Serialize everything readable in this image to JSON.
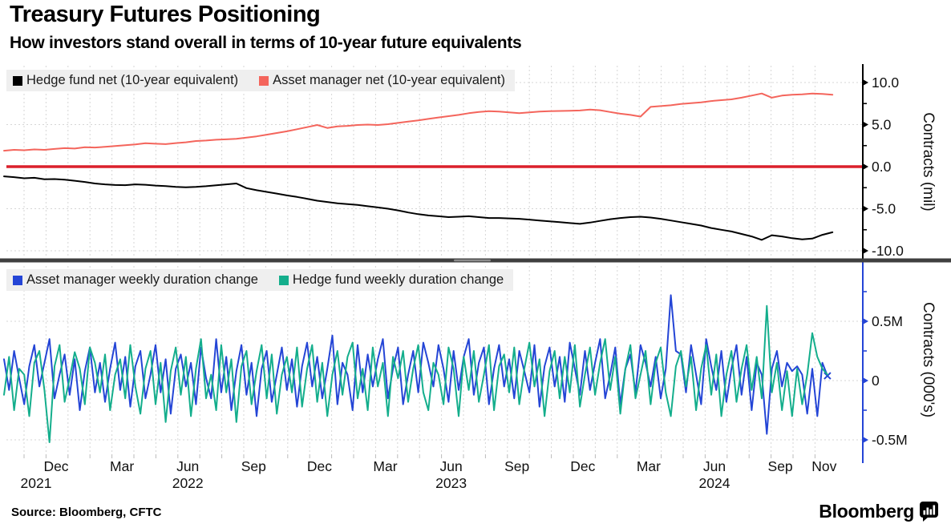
{
  "header": {
    "title": "Treasury Futures Positioning",
    "subtitle": "How investors stand overall in terms of 10-year future equivalents"
  },
  "footer": {
    "source": "Source: Bloomberg, CFTC",
    "brand": "Bloomberg",
    "brand_icon": "bloomberg-bar-chart-icon"
  },
  "colors": {
    "hedge_fund_net": "#000000",
    "asset_manager_net": "#F4655C",
    "zero_line": "#DB202C",
    "asset_manager_duration": "#2445D6",
    "hedge_fund_duration": "#14AE8C",
    "grid": "#d6d6d6",
    "separator": "#3f3f3f",
    "top_axis": "#000000",
    "bottom_axis": "#2445D6"
  },
  "chart_data": {
    "type": "line",
    "layout": "two-stacked-panels, right-side y axes, shared x axis",
    "x_axis": {
      "tick_labels": [
        "Dec",
        "Mar",
        "Jun",
        "Sep",
        "Dec",
        "Mar",
        "Jun",
        "Sep",
        "Dec",
        "Mar",
        "Jun",
        "Sep",
        "Nov"
      ],
      "year_labels": [
        {
          "tick_index": 0,
          "label": "2021"
        },
        {
          "tick_index": 2,
          "label": "2022"
        },
        {
          "tick_index": 6,
          "label": "2023"
        },
        {
          "tick_index": 10,
          "label": "2024"
        }
      ],
      "range": "Oct 2021 - Nov 2024",
      "grid": "monthly dashed vertical lines"
    },
    "panels": [
      {
        "name": "net-positioning",
        "ylabel": "Contracts (mil)",
        "ylim": [
          -11,
          11.5
        ],
        "yticks": [
          {
            "v": 10,
            "label": "10.0"
          },
          {
            "v": 5,
            "label": "5.0"
          },
          {
            "v": 0,
            "label": "0.0"
          },
          {
            "v": -5,
            "label": "-5.0"
          },
          {
            "v": -10,
            "label": "-10.0"
          }
        ],
        "yticks_minor": [
          7.5,
          2.5,
          -2.5,
          -7.5
        ],
        "zero_line": true,
        "points_step_weeks": 2,
        "legend": [
          {
            "label": "Hedge fund net (10-year equivalent)",
            "color": "#000000"
          },
          {
            "label": "Asset manager net (10-year equivalent)",
            "color": "#F4655C"
          }
        ],
        "series": [
          {
            "name": "Hedge fund net (10-year equivalent)",
            "color": "#000000",
            "values": [
              -1.15,
              -1.25,
              -1.38,
              -1.32,
              -1.5,
              -1.48,
              -1.55,
              -1.68,
              -1.82,
              -2.0,
              -2.1,
              -2.18,
              -2.2,
              -2.1,
              -2.15,
              -2.25,
              -2.3,
              -2.4,
              -2.45,
              -2.4,
              -2.32,
              -2.22,
              -2.1,
              -2.0,
              -2.55,
              -2.8,
              -3.0,
              -3.2,
              -3.42,
              -3.6,
              -3.82,
              -4.05,
              -4.2,
              -4.35,
              -4.45,
              -4.55,
              -4.7,
              -4.85,
              -5.0,
              -5.2,
              -5.45,
              -5.65,
              -5.8,
              -5.9,
              -6.0,
              -5.95,
              -5.9,
              -6.0,
              -6.1,
              -6.1,
              -6.15,
              -6.2,
              -6.3,
              -6.4,
              -6.5,
              -6.6,
              -6.7,
              -6.8,
              -6.65,
              -6.45,
              -6.25,
              -6.1,
              -6.0,
              -5.95,
              -6.05,
              -6.2,
              -6.4,
              -6.6,
              -6.8,
              -7.0,
              -7.3,
              -7.5,
              -7.7,
              -8.0,
              -8.3,
              -8.7,
              -8.15,
              -8.3,
              -8.5,
              -8.65,
              -8.55,
              -8.1,
              -7.8
            ]
          },
          {
            "name": "Asset manager net (10-year equivalent)",
            "color": "#F4655C",
            "values": [
              1.9,
              2.0,
              1.95,
              2.05,
              2.0,
              2.1,
              2.2,
              2.15,
              2.3,
              2.28,
              2.35,
              2.45,
              2.55,
              2.65,
              2.78,
              2.72,
              2.68,
              2.8,
              2.9,
              3.05,
              3.1,
              3.2,
              3.25,
              3.3,
              3.45,
              3.6,
              3.8,
              4.0,
              4.2,
              4.45,
              4.7,
              4.95,
              4.6,
              4.78,
              4.85,
              4.95,
              5.0,
              4.95,
              5.05,
              5.2,
              5.35,
              5.5,
              5.68,
              5.85,
              6.0,
              6.15,
              6.35,
              6.5,
              6.6,
              6.55,
              6.45,
              6.35,
              6.45,
              6.55,
              6.6,
              6.62,
              6.65,
              6.68,
              6.78,
              6.7,
              6.5,
              6.3,
              6.15,
              5.95,
              7.1,
              7.2,
              7.3,
              7.45,
              7.55,
              7.65,
              7.8,
              7.9,
              8.0,
              8.2,
              8.45,
              8.7,
              8.2,
              8.45,
              8.55,
              8.6,
              8.7,
              8.65,
              8.55
            ]
          }
        ]
      },
      {
        "name": "weekly-duration-change",
        "ylabel": "Contracts (000's)",
        "ylim": [
          -0.8,
          0.9
        ],
        "yticks": [
          {
            "v": 0.5,
            "label": "0.5M"
          },
          {
            "v": 0,
            "label": "0"
          },
          {
            "v": -0.5,
            "label": "-0.5M"
          }
        ],
        "yticks_minor": [
          0.75,
          0.25,
          -0.25
        ],
        "zero_line": false,
        "points_step_weeks": 1,
        "end_marker": {
          "series": 0,
          "shape": "x"
        },
        "legend": [
          {
            "label": "Asset manager weekly duration change",
            "color": "#2445D6"
          },
          {
            "label": "Hedge fund weekly duration change",
            "color": "#14AE8C"
          }
        ],
        "series": [
          {
            "name": "Asset manager weekly duration change",
            "color": "#2445D6",
            "values": [
              0.18,
              -0.08,
              0.25,
              0.02,
              -0.2,
              0.12,
              0.3,
              -0.05,
              0.15,
              0.35,
              -0.15,
              0.05,
              0.22,
              -0.12,
              0.18,
              -0.25,
              0.08,
              0.28,
              -0.1,
              0.15,
              -0.18,
              0.1,
              0.32,
              -0.08,
              0.2,
              -0.22,
              0.12,
              0.25,
              -0.15,
              0.05,
              0.3,
              -0.1,
              0.18,
              -0.28,
              0.1,
              0.22,
              -0.05,
              0.15,
              -0.2,
              0.28,
              0.02,
              -0.15,
              0.35,
              -0.1,
              0.2,
              -0.25,
              0.08,
              0.3,
              -0.12,
              0.15,
              -0.3,
              0.1,
              0.25,
              -0.18,
              0.05,
              0.28,
              -0.08,
              0.18,
              -0.22,
              0.12,
              0.32,
              -0.05,
              0.2,
              -0.15,
              0.1,
              0.38,
              -0.2,
              0.15,
              0.05,
              -0.25,
              0.3,
              -0.1,
              0.22,
              -0.05,
              0.18,
              0.35,
              -0.15,
              0.1,
              0.28,
              -0.2,
              0.05,
              0.25,
              -0.1,
              0.32,
              0.15,
              -0.05,
              0.3,
              0.1,
              -0.18,
              0.25,
              -0.08,
              0.2,
              0.35,
              -0.12,
              0.15,
              0.28,
              -0.2,
              0.1,
              0.3,
              -0.05,
              0.18,
              -0.15,
              0.25,
              0.08,
              -0.1,
              0.3,
              -0.22,
              0.12,
              0.28,
              -0.05,
              0.2,
              -0.18,
              0.32,
              0.1,
              -0.12,
              0.25,
              -0.08,
              0.15,
              0.35,
              -0.15,
              0.05,
              0.28,
              -0.2,
              0.1,
              0.22,
              -0.1,
              0.3,
              0.15,
              -0.05,
              0.2,
              -0.15,
              0.1,
              0.72,
              0.25,
              0.22,
              -0.1,
              0.3,
              0.05,
              -0.2,
              0.35,
              0.12,
              -0.08,
              0.25,
              -0.18,
              0.1,
              0.3,
              -0.12,
              0.2,
              -0.25,
              0.15,
              0.05,
              -0.45,
              0.1,
              0.25,
              -0.05,
              0.15,
              0.08,
              0.12,
              0.05,
              -0.28,
              0.1,
              -0.3,
              0.15,
              0.04
            ]
          },
          {
            "name": "Hedge fund weekly duration change",
            "color": "#14AE8C",
            "values": [
              -0.12,
              0.2,
              -0.25,
              0.1,
              0.05,
              -0.3,
              0.15,
              0.25,
              -0.08,
              -0.52,
              0.12,
              0.3,
              -0.18,
              0.02,
              0.24,
              0.1,
              -0.2,
              0.28,
              0.15,
              -0.1,
              0.22,
              -0.25,
              0.05,
              0.18,
              -0.15,
              0.3,
              -0.05,
              -0.28,
              0.1,
              0.25,
              -0.2,
              0.15,
              -0.35,
              0.08,
              0.28,
              -0.12,
              0.2,
              -0.3,
              0.1,
              0.35,
              -0.15,
              0.05,
              -0.25,
              0.3,
              -0.1,
              0.18,
              -0.35,
              0.12,
              0.25,
              -0.2,
              0.08,
              0.3,
              -0.15,
              0.22,
              -0.28,
              0.05,
              0.2,
              -0.1,
              0.28,
              -0.22,
              0.1,
              0.3,
              -0.18,
              0.15,
              -0.3,
              0.05,
              0.25,
              -0.12,
              0.2,
              0.32,
              -0.15,
              0.1,
              -0.25,
              0.28,
              -0.05,
              0.15,
              -0.3,
              0.2,
              0.02,
              0.25,
              -0.18,
              0.1,
              0.3,
              -0.1,
              -0.25,
              0.15,
              0.05,
              -0.2,
              0.28,
              0.1,
              -0.3,
              0.2,
              -0.08,
              0.25,
              -0.18,
              0.05,
              0.3,
              -0.25,
              0.12,
              0.22,
              -0.1,
              0.28,
              -0.2,
              0.1,
              0.32,
              -0.05,
              0.18,
              -0.3,
              0.08,
              0.25,
              -0.15,
              0.2,
              -0.1,
              0.3,
              -0.22,
              0.05,
              0.28,
              -0.12,
              0.15,
              0.35,
              -0.08,
              0.2,
              -0.28,
              0.1,
              0.3,
              -0.15,
              0.05,
              0.25,
              -0.2,
              0.15,
              0.28,
              -0.1,
              -0.3,
              0.12,
              0.25,
              -0.05,
              0.2,
              -0.25,
              0.1,
              0.3,
              -0.12,
              0.22,
              -0.3,
              0.05,
              0.25,
              -0.18,
              0.1,
              0.3,
              -0.08,
              0.2,
              -0.15,
              0.63,
              -0.1,
              0.15,
              -0.25,
              0.08,
              -0.3,
              0.1,
              -0.2,
              0.05,
              0.4,
              0.2,
              0.1,
              0.05
            ]
          }
        ]
      }
    ]
  }
}
